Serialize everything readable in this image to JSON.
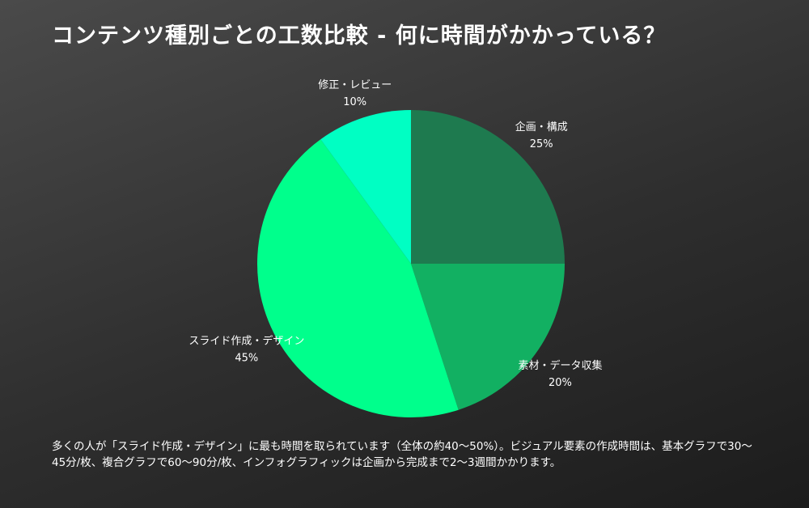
{
  "title": "コンテンツ種別ごとの工数比較 - 何に時間がかかっている？",
  "chart_data": {
    "type": "pie",
    "title": "コンテンツ種別ごとの工数比較 - 何に時間がかかっている？",
    "slices": [
      {
        "label": "企画・構成",
        "value": 25,
        "value_label": "25%",
        "color": "#1e7a4f"
      },
      {
        "label": "素材・データ収集",
        "value": 20,
        "value_label": "20%",
        "color": "#12b062"
      },
      {
        "label": "スライド作成・デザイン",
        "value": 45,
        "value_label": "45%",
        "color": "#00ff8c"
      },
      {
        "label": "修正・レビュー",
        "value": 10,
        "value_label": "10%",
        "color": "#00ffc3"
      }
    ]
  },
  "caption": "多くの人が「スライド作成・デザイン」に最も時間を取られています（全体の約40〜50%）。ビジュアル要素の作成時間は、基本グラフで30〜45分/枚、複合グラフで60〜90分/枚、インフォグラフィックは企画から完成まで2〜3週間かかります。"
}
